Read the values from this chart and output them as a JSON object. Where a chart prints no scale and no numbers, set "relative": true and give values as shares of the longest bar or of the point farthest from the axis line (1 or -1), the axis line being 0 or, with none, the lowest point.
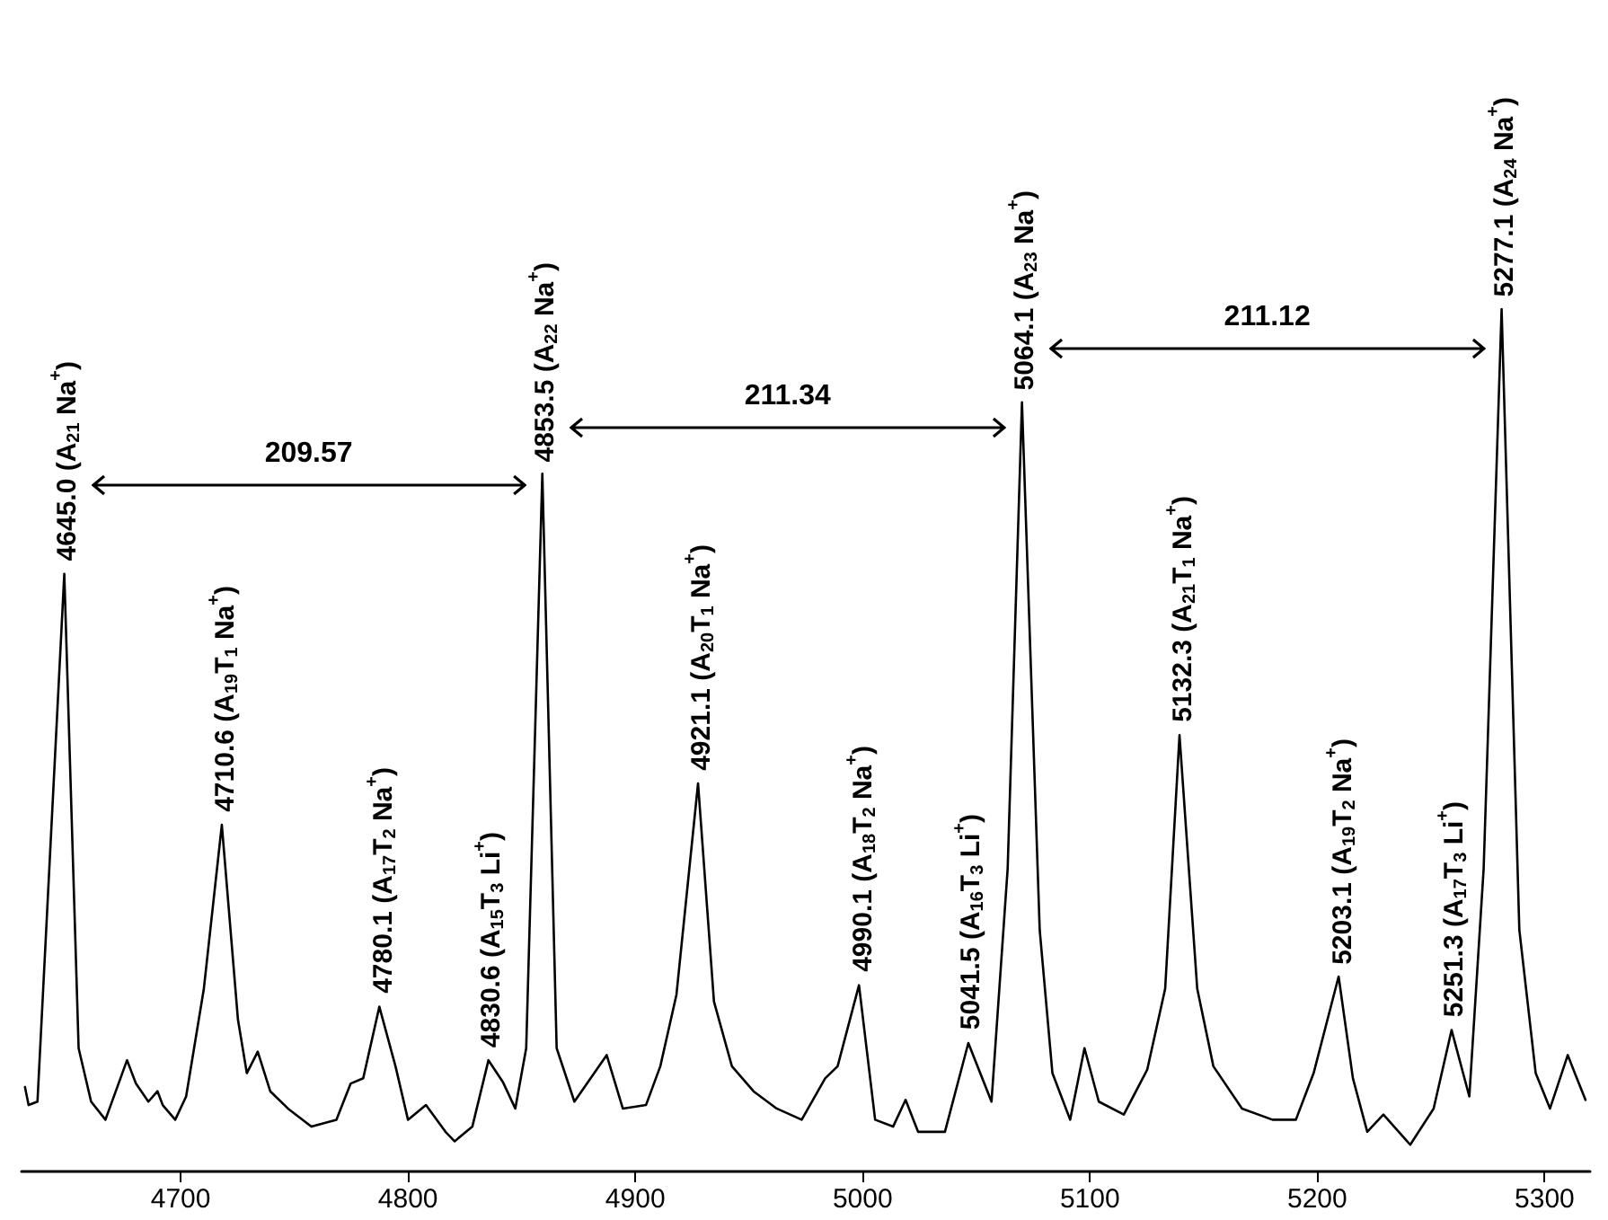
{
  "chart_data": {
    "type": "line",
    "relative": true,
    "xlim": [
      4630,
      5320
    ],
    "xticks": [
      4700,
      4800,
      4900,
      5000,
      5100,
      5200,
      5300
    ],
    "tick_labels": "x",
    "grid": false,
    "marker": "none",
    "line_style": "solid",
    "series": [
      {
        "color": "#000000",
        "x": [
          4631.5,
          4633.1,
          4637.0,
          4648.8,
          4655.1,
          4660.6,
          4666.9,
          4676.4,
          4680.3,
          4685.8,
          4689.8,
          4692.1,
          4697.6,
          4702.4,
          4710.2,
          4718.1,
          4725.2,
          4729.1,
          4733.9,
          4739.4,
          4747.2,
          4757.5,
          4768.5,
          4774.8,
          4780.3,
          4787.4,
          4794.5,
          4800.0,
          4807.9,
          4816.5,
          4820.5,
          4828.3,
          4835.4,
          4841.7,
          4847.2,
          4852.0,
          4859.1,
          4865.4,
          4873.2,
          4887.4,
          4894.5,
          4904.7,
          4911.0,
          4918.1,
          4927.6,
          4934.6,
          4942.5,
          4952.0,
          4962.2,
          4973.2,
          4983.5,
          4989.0,
          4998.4,
          5005.5,
          5013.4,
          5018.9,
          5024.4,
          5036.2,
          5046.5,
          5056.7,
          5063.8,
          5070.1,
          5077.9,
          5083.5,
          5091.3,
          5097.6,
          5103.9,
          5114.9,
          5125.2,
          5133.1,
          5139.4,
          5147.2,
          5154.3,
          5166.9,
          5180.3,
          5190.6,
          5198.4,
          5209.4,
          5215.7,
          5222.0,
          5229.1,
          5240.9,
          5251.2,
          5259.1,
          5266.9,
          5273.2,
          5281.1,
          5288.9,
          5296.1,
          5302.4,
          5310.2,
          5314.2,
          5318.0
        ],
        "values": [
          0.098,
          0.077,
          0.081,
          0.693,
          0.143,
          0.081,
          0.06,
          0.129,
          0.102,
          0.081,
          0.093,
          0.077,
          0.06,
          0.087,
          0.212,
          0.402,
          0.176,
          0.114,
          0.139,
          0.093,
          0.073,
          0.052,
          0.06,
          0.102,
          0.108,
          0.191,
          0.122,
          0.06,
          0.077,
          0.046,
          0.035,
          0.052,
          0.129,
          0.104,
          0.073,
          0.143,
          0.809,
          0.143,
          0.081,
          0.135,
          0.073,
          0.077,
          0.122,
          0.205,
          0.45,
          0.197,
          0.122,
          0.093,
          0.073,
          0.06,
          0.108,
          0.122,
          0.216,
          0.06,
          0.052,
          0.083,
          0.046,
          0.046,
          0.149,
          0.081,
          0.351,
          0.892,
          0.28,
          0.114,
          0.06,
          0.143,
          0.081,
          0.066,
          0.118,
          0.212,
          0.506,
          0.212,
          0.122,
          0.073,
          0.06,
          0.06,
          0.114,
          0.226,
          0.108,
          0.046,
          0.066,
          0.031,
          0.073,
          0.164,
          0.087,
          0.351,
          1,
          0.28,
          0.114,
          0.073,
          0.135,
          0.108,
          0.083
        ]
      }
    ],
    "annotations": [
      {
        "text": "4645.0  (A$_{21}$ Na$^{+}$)",
        "x": 4648.8,
        "y": 0.693
      },
      {
        "text": "4710.6 (A$_{19}$T$_{1}$ Na$^{+}$)",
        "x": 4718.1,
        "y": 0.402
      },
      {
        "text": "4780.1 (A$_{17}$T$_{2}$ Na$^{+}$)",
        "x": 4787.4,
        "y": 0.191
      },
      {
        "text": "4830.6 (A$_{15}$T$_{3}$ Li$^{+}$)",
        "x": 4835.4,
        "y": 0.129
      },
      {
        "text": "4853.5 (A$_{22}$ Na$^{+}$)",
        "x": 4859.1,
        "y": 0.809
      },
      {
        "text": "4921.1 (A$_{20}$T$_{1}$ Na$^{+}$)",
        "x": 4927.6,
        "y": 0.45
      },
      {
        "text": "4990.1 (A$_{18}$T$_{2}$ Na$^{+}$)",
        "x": 4998.4,
        "y": 0.216
      },
      {
        "text": "5041.5 (A$_{16}$T$_{3}$ Li$^{+}$)",
        "x": 5046.5,
        "y": 0.149
      },
      {
        "text": "5064.1 (A$_{23}$ Na$^{+}$)",
        "x": 5070.1,
        "y": 0.892
      },
      {
        "text": "5132.3 (A$_{21}$T$_{1}$ Na$^{+}$)",
        "x": 5139.4,
        "y": 0.506
      },
      {
        "text": "5203.1 (A$_{19}$T$_{2}$ Na$^{+}$)",
        "x": 5209.4,
        "y": 0.226
      },
      {
        "text": "5251.3 (A$_{17}$T$_{3}$ Li$^{+}$)",
        "x": 5259.1,
        "y": 0.164
      },
      {
        "text": "5277.1 (A$_{24}$ Na$^{+}$)",
        "x": 5281.1,
        "y": 1
      },
      "209.57",
      "211.34",
      "211.12"
    ]
  }
}
